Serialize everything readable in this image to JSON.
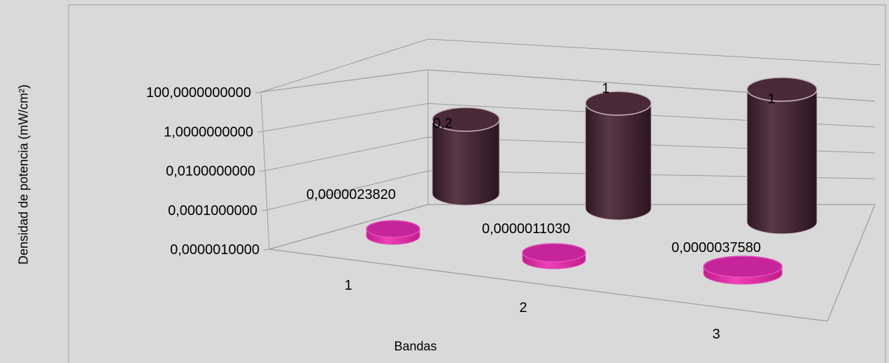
{
  "chart_data": {
    "type": "bar",
    "style": "3d-cylinder",
    "categories": [
      "1",
      "2",
      "3"
    ],
    "series": [
      {
        "values": [
          2.382e-06,
          1.103e-06,
          3.758e-06
        ],
        "data_labels": [
          "0,0000023820",
          "0,0000011030",
          "0,0000037580"
        ],
        "color": "#d8259d"
      },
      {
        "values": [
          0.2,
          1,
          1
        ],
        "data_labels": [
          "0,2",
          "1",
          "1"
        ],
        "color": "#4a2a38"
      }
    ],
    "xlabel": "Bandas",
    "ylabel": "Densidad de potencia (mW/cm²)",
    "yscale": "log",
    "ylim": [
      1e-06,
      100
    ],
    "yticks": [
      1e-06,
      0.0001,
      0.01,
      1,
      100
    ],
    "ytick_labels": [
      "0,0000010000",
      "0,0001000000",
      "0,0100000000",
      "1,0000000000",
      "100,0000000000"
    ],
    "grid": true,
    "legend": "none"
  }
}
